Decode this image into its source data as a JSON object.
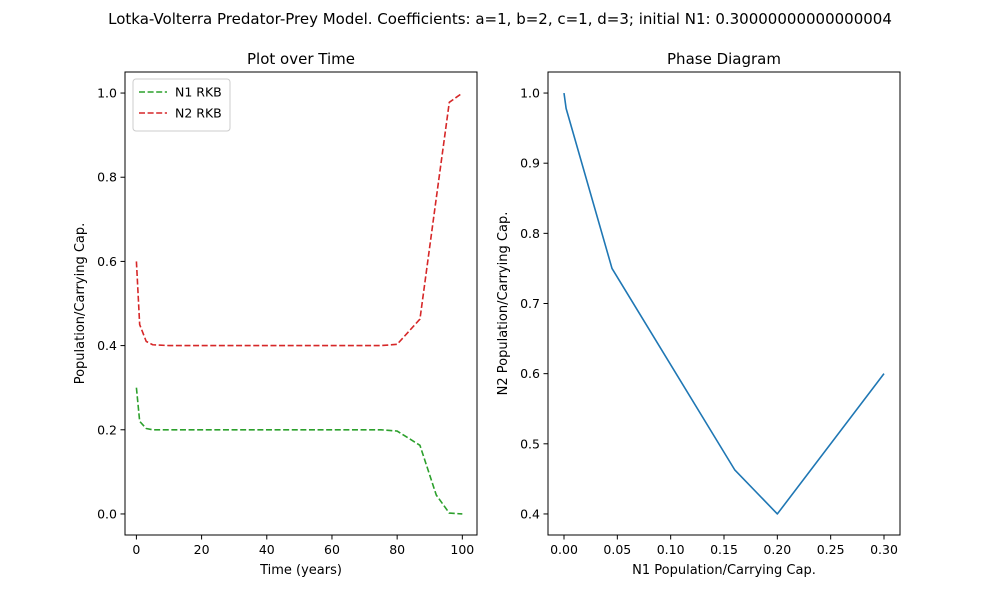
{
  "suptitle": "Lotka-Volterra Predator-Prey Model. Coefficients: a=1, b=2, c=1, d=3; initial N1: 0.30000000000000004",
  "chart_data": [
    {
      "type": "line",
      "title": "Plot over Time",
      "xlabel": "Time (years)",
      "ylabel": "Population/Carrying Cap.",
      "xlim": [
        -3.5,
        104.5
      ],
      "ylim": [
        -0.05,
        1.05
      ],
      "xticks": [
        0,
        20,
        40,
        60,
        80,
        100
      ],
      "xtick_labels": [
        "0",
        "20",
        "40",
        "60",
        "80",
        "100"
      ],
      "yticks": [
        0.0,
        0.2,
        0.4,
        0.6,
        0.8,
        1.0
      ],
      "ytick_labels": [
        "0.0",
        "0.2",
        "0.4",
        "0.6",
        "0.8",
        "1.0"
      ],
      "grid": false,
      "legend": "upper-left",
      "series": [
        {
          "name": "N1 RKB",
          "color": "#2ca02c",
          "style": "dashed",
          "x": [
            0,
            1,
            3,
            5,
            10,
            20,
            40,
            60,
            75,
            80,
            87,
            92,
            96,
            100
          ],
          "y": [
            0.3,
            0.22,
            0.203,
            0.2,
            0.2,
            0.2,
            0.2,
            0.2,
            0.2,
            0.197,
            0.163,
            0.045,
            0.002,
            0.0
          ]
        },
        {
          "name": "N2 RKB",
          "color": "#d62728",
          "style": "dashed",
          "x": [
            0,
            1,
            3,
            5,
            10,
            20,
            40,
            60,
            75,
            80,
            87,
            92,
            96,
            100
          ],
          "y": [
            0.6,
            0.45,
            0.41,
            0.402,
            0.4,
            0.4,
            0.4,
            0.4,
            0.4,
            0.403,
            0.463,
            0.75,
            0.978,
            1.0
          ]
        }
      ]
    },
    {
      "type": "line",
      "title": "Phase Diagram",
      "xlabel": "N1 Population/Carrying Cap.",
      "ylabel": "N2 Population/Carrying Cap.",
      "xlim": [
        -0.015,
        0.315
      ],
      "ylim": [
        0.37,
        1.03
      ],
      "xticks": [
        0.0,
        0.05,
        0.1,
        0.15,
        0.2,
        0.25,
        0.3
      ],
      "xtick_labels": [
        "0.00",
        "0.05",
        "0.10",
        "0.15",
        "0.20",
        "0.25",
        "0.30"
      ],
      "yticks": [
        0.4,
        0.5,
        0.6,
        0.7,
        0.8,
        0.9,
        1.0
      ],
      "ytick_labels": [
        "0.4",
        "0.5",
        "0.6",
        "0.7",
        "0.8",
        "0.9",
        "1.0"
      ],
      "grid": false,
      "series": [
        {
          "color": "#1f77b4",
          "style": "solid",
          "x": [
            0.0,
            0.002,
            0.045,
            0.16,
            0.2,
            0.3
          ],
          "y": [
            1.0,
            0.978,
            0.75,
            0.463,
            0.4,
            0.6
          ]
        }
      ]
    }
  ]
}
